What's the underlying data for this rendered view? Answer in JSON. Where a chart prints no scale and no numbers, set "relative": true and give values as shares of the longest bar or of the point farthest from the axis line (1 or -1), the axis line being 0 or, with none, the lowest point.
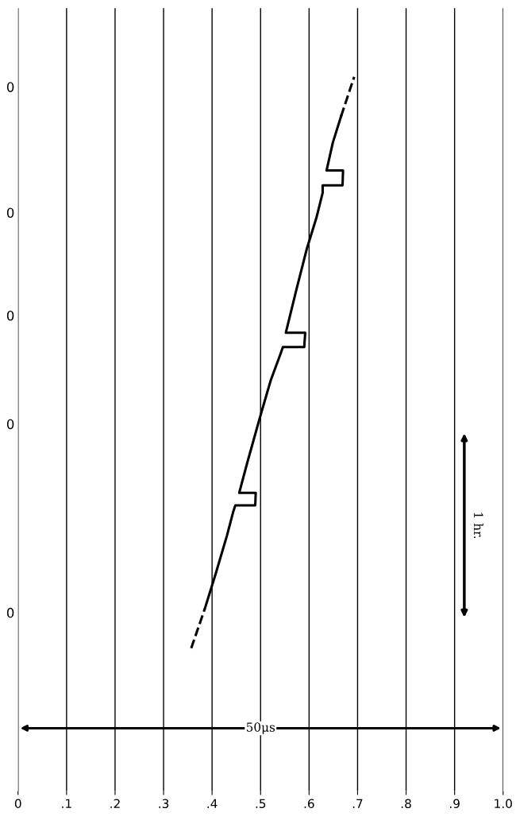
{
  "chart_data": {
    "type": "line",
    "relative": true,
    "grid": "x",
    "xlim": [
      0,
      1.0
    ],
    "xticks": [
      0,
      {
        "value": 0.1,
        "label": ".1"
      },
      {
        "value": 0.2,
        "label": ".2"
      },
      {
        "value": 0.3,
        "label": ".3"
      },
      {
        "value": 0.4,
        "label": ".4"
      },
      {
        "value": 0.5,
        "label": ".5"
      },
      {
        "value": 0.6,
        "label": ".6"
      },
      {
        "value": 0.7,
        "label": ".7"
      },
      {
        "value": 0.8,
        "label": ".8"
      },
      {
        "value": 0.9,
        "label": ".9"
      },
      {
        "value": 1.0,
        "label": "1.0"
      }
    ],
    "tick_labels": "x",
    "series": [
      {
        "color": "#000000",
        "line_style": "dashed",
        "x": [
          0.357,
          0.385
        ],
        "values": [
          0,
          0.069
        ]
      },
      {
        "color": "#000000",
        "line_style": "solid",
        "x": [
          0.385,
          0.407,
          0.431,
          0.444,
          0.448,
          0.489,
          0.49,
          0.456,
          0.472,
          0.497,
          0.521,
          0.541,
          0.546,
          0.59,
          0.592,
          0.552,
          0.574,
          0.595,
          0.615,
          0.628,
          0.628,
          0.669,
          0.67,
          0.636,
          0.649,
          0.666
        ],
        "values": [
          0.069,
          0.129,
          0.198,
          0.24,
          0.25,
          0.25,
          0.272,
          0.272,
          0.323,
          0.399,
          0.469,
          0.515,
          0.527,
          0.527,
          0.552,
          0.552,
          0.628,
          0.698,
          0.753,
          0.797,
          0.81,
          0.81,
          0.836,
          0.836,
          0.885,
          0.931
        ]
      },
      {
        "color": "#000000",
        "line_style": "dashed",
        "x": [
          0.666,
          0.693
        ],
        "values": [
          0.931,
          1.0
        ]
      }
    ],
    "annotations": [
      "0",
      "0",
      "0",
      "0",
      "0",
      "1 hr.",
      "50μs"
    ]
  }
}
